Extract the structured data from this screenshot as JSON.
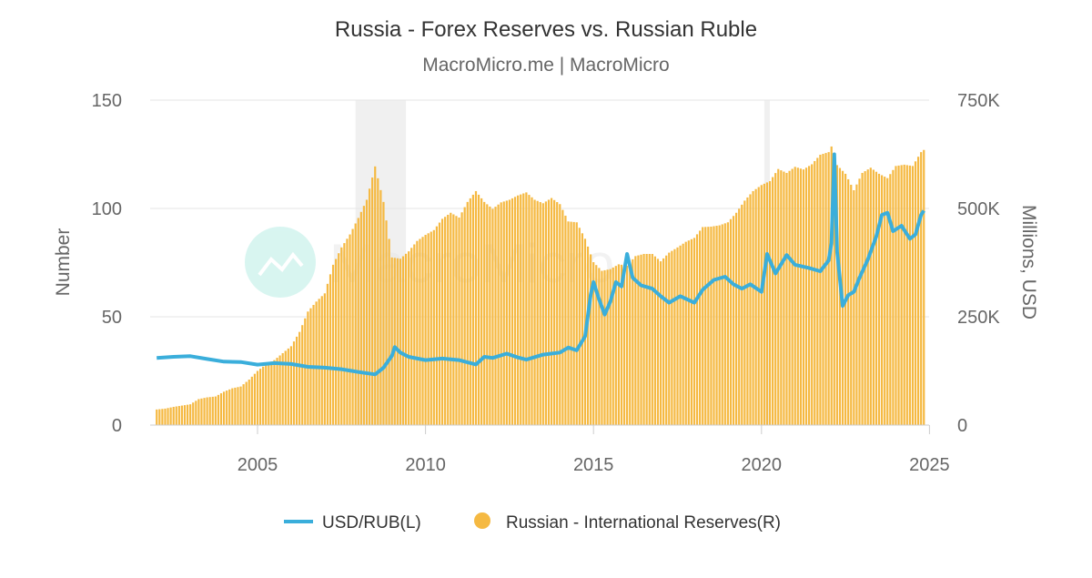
{
  "chart_data": {
    "type": "bar+line",
    "title": "Russia - Forex Reserves vs. Russian Ruble",
    "subtitle": "MacroMicro.me | MacroMicro",
    "watermark": "MacroMicro",
    "ylabel_left": "Number",
    "ylabel_right": "Millions, USD",
    "ylim_left": [
      0,
      150
    ],
    "ylim_right": [
      0,
      750000
    ],
    "yticks_left": [
      "0",
      "50",
      "100",
      "150"
    ],
    "yticks_right": [
      "0",
      "250K",
      "500K",
      "750K"
    ],
    "xticks": [
      "2005",
      "2010",
      "2015",
      "2020",
      "2025"
    ],
    "grid": true,
    "legend_position": "bottom",
    "recessions": [
      [
        "2007-12",
        "2009-06"
      ],
      [
        "2020-02",
        "2020-04"
      ]
    ],
    "colors": {
      "line": "#3aaedb",
      "bars": "#f5b942",
      "recession": "#f0f0f0"
    },
    "series": [
      {
        "name": "USD/RUB(L)",
        "type": "line",
        "axis": "left",
        "points": [
          [
            "2002-01",
            31.0
          ],
          [
            "2002-07",
            31.5
          ],
          [
            "2003-01",
            31.8
          ],
          [
            "2003-07",
            30.5
          ],
          [
            "2004-01",
            29.3
          ],
          [
            "2004-07",
            29.1
          ],
          [
            "2005-01",
            27.9
          ],
          [
            "2005-07",
            28.6
          ],
          [
            "2006-01",
            28.2
          ],
          [
            "2006-07",
            26.9
          ],
          [
            "2007-01",
            26.5
          ],
          [
            "2007-07",
            25.8
          ],
          [
            "2008-01",
            24.5
          ],
          [
            "2008-07",
            23.4
          ],
          [
            "2008-10",
            26.5
          ],
          [
            "2009-01",
            32.0
          ],
          [
            "2009-02",
            36.0
          ],
          [
            "2009-04",
            33.5
          ],
          [
            "2009-07",
            31.5
          ],
          [
            "2010-01",
            30.0
          ],
          [
            "2010-07",
            30.7
          ],
          [
            "2011-01",
            30.0
          ],
          [
            "2011-07",
            28.0
          ],
          [
            "2011-10",
            31.5
          ],
          [
            "2012-01",
            31.0
          ],
          [
            "2012-06",
            33.0
          ],
          [
            "2012-10",
            31.2
          ],
          [
            "2013-01",
            30.2
          ],
          [
            "2013-07",
            32.5
          ],
          [
            "2014-01",
            33.5
          ],
          [
            "2014-04",
            35.8
          ],
          [
            "2014-07",
            34.5
          ],
          [
            "2014-10",
            41.0
          ],
          [
            "2014-12",
            60.0
          ],
          [
            "2015-01",
            66.0
          ],
          [
            "2015-03",
            58.0
          ],
          [
            "2015-05",
            51.0
          ],
          [
            "2015-07",
            57.0
          ],
          [
            "2015-09",
            66.0
          ],
          [
            "2015-11",
            64.0
          ],
          [
            "2016-01",
            79.0
          ],
          [
            "2016-03",
            68.0
          ],
          [
            "2016-06",
            64.5
          ],
          [
            "2016-10",
            63.0
          ],
          [
            "2017-01",
            59.5
          ],
          [
            "2017-04",
            56.5
          ],
          [
            "2017-08",
            59.5
          ],
          [
            "2018-01",
            56.5
          ],
          [
            "2018-04",
            62.5
          ],
          [
            "2018-08",
            67.0
          ],
          [
            "2018-12",
            68.5
          ],
          [
            "2019-03",
            65.0
          ],
          [
            "2019-06",
            63.0
          ],
          [
            "2019-09",
            65.0
          ],
          [
            "2020-01",
            61.5
          ],
          [
            "2020-03",
            79.0
          ],
          [
            "2020-06",
            70.0
          ],
          [
            "2020-10",
            78.5
          ],
          [
            "2021-01",
            74.0
          ],
          [
            "2021-06",
            72.5
          ],
          [
            "2021-10",
            71.0
          ],
          [
            "2022-01",
            76.0
          ],
          [
            "2022-02",
            84.0
          ],
          [
            "2022-03",
            125.0
          ],
          [
            "2022-04",
            80.0
          ],
          [
            "2022-06",
            55.0
          ],
          [
            "2022-08",
            60.0
          ],
          [
            "2022-10",
            61.5
          ],
          [
            "2022-12",
            68.0
          ],
          [
            "2023-03",
            76.5
          ],
          [
            "2023-06",
            87.0
          ],
          [
            "2023-08",
            97.0
          ],
          [
            "2023-10",
            98.0
          ],
          [
            "2023-12",
            89.5
          ],
          [
            "2024-03",
            92.0
          ],
          [
            "2024-06",
            86.0
          ],
          [
            "2024-08",
            88.0
          ],
          [
            "2024-10",
            97.0
          ],
          [
            "2024-11",
            99.0
          ]
        ]
      },
      {
        "name": "Russian - International Reserves(R)",
        "type": "bar",
        "axis": "right",
        "points": [
          [
            "2002-01",
            36000
          ],
          [
            "2002-04",
            38000
          ],
          [
            "2002-07",
            42000
          ],
          [
            "2002-10",
            45000
          ],
          [
            "2003-01",
            48000
          ],
          [
            "2003-04",
            60000
          ],
          [
            "2003-07",
            64000
          ],
          [
            "2003-10",
            66000
          ],
          [
            "2004-01",
            77000
          ],
          [
            "2004-04",
            85000
          ],
          [
            "2004-07",
            89000
          ],
          [
            "2004-10",
            105000
          ],
          [
            "2005-01",
            125000
          ],
          [
            "2005-04",
            140000
          ],
          [
            "2005-07",
            150000
          ],
          [
            "2005-10",
            166000
          ],
          [
            "2006-01",
            182000
          ],
          [
            "2006-04",
            215000
          ],
          [
            "2006-07",
            262000
          ],
          [
            "2006-10",
            285000
          ],
          [
            "2007-01",
            304000
          ],
          [
            "2007-04",
            370000
          ],
          [
            "2007-07",
            410000
          ],
          [
            "2007-10",
            440000
          ],
          [
            "2008-01",
            478000
          ],
          [
            "2008-04",
            520000
          ],
          [
            "2008-07",
            597000
          ],
          [
            "2008-10",
            515000
          ],
          [
            "2009-01",
            387000
          ],
          [
            "2009-04",
            384000
          ],
          [
            "2009-07",
            401000
          ],
          [
            "2009-10",
            425000
          ],
          [
            "2010-01",
            439000
          ],
          [
            "2010-04",
            450000
          ],
          [
            "2010-07",
            476000
          ],
          [
            "2010-10",
            490000
          ],
          [
            "2011-01",
            479000
          ],
          [
            "2011-04",
            515000
          ],
          [
            "2011-07",
            540000
          ],
          [
            "2011-10",
            515000
          ],
          [
            "2012-01",
            499000
          ],
          [
            "2012-04",
            514000
          ],
          [
            "2012-07",
            520000
          ],
          [
            "2012-10",
            530000
          ],
          [
            "2013-01",
            537000
          ],
          [
            "2013-04",
            520000
          ],
          [
            "2013-07",
            512000
          ],
          [
            "2013-10",
            524000
          ],
          [
            "2014-01",
            510000
          ],
          [
            "2014-04",
            470000
          ],
          [
            "2014-07",
            468000
          ],
          [
            "2014-10",
            430000
          ],
          [
            "2015-01",
            376000
          ],
          [
            "2015-04",
            356000
          ],
          [
            "2015-07",
            360000
          ],
          [
            "2015-10",
            371000
          ],
          [
            "2016-01",
            368000
          ],
          [
            "2016-04",
            390000
          ],
          [
            "2016-07",
            395000
          ],
          [
            "2016-10",
            395000
          ],
          [
            "2017-01",
            378000
          ],
          [
            "2017-04",
            398000
          ],
          [
            "2017-07",
            410000
          ],
          [
            "2017-10",
            423000
          ],
          [
            "2018-01",
            432000
          ],
          [
            "2018-04",
            457000
          ],
          [
            "2018-07",
            458000
          ],
          [
            "2018-10",
            461000
          ],
          [
            "2019-01",
            468000
          ],
          [
            "2019-04",
            490000
          ],
          [
            "2019-07",
            518000
          ],
          [
            "2019-10",
            540000
          ],
          [
            "2020-01",
            554000
          ],
          [
            "2020-04",
            563000
          ],
          [
            "2020-07",
            591000
          ],
          [
            "2020-10",
            582000
          ],
          [
            "2021-01",
            596000
          ],
          [
            "2021-04",
            590000
          ],
          [
            "2021-07",
            602000
          ],
          [
            "2021-10",
            624000
          ],
          [
            "2022-01",
            630000
          ],
          [
            "2022-02",
            643000
          ],
          [
            "2022-04",
            600000
          ],
          [
            "2022-07",
            580000
          ],
          [
            "2022-10",
            542000
          ],
          [
            "2023-01",
            582000
          ],
          [
            "2023-04",
            594000
          ],
          [
            "2023-07",
            580000
          ],
          [
            "2023-10",
            570000
          ],
          [
            "2024-01",
            598000
          ],
          [
            "2024-04",
            601000
          ],
          [
            "2024-07",
            598000
          ],
          [
            "2024-10",
            630000
          ],
          [
            "2024-11",
            635000
          ]
        ]
      }
    ]
  }
}
